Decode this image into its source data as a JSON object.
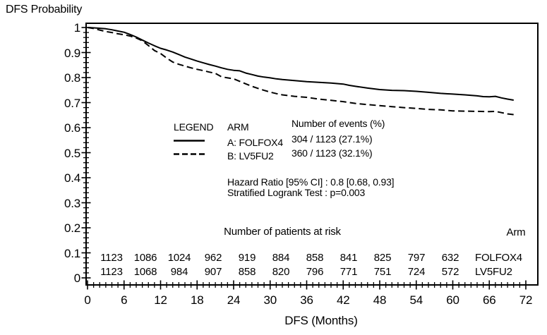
{
  "title": "DFS Probability",
  "xlabel": "DFS (Months)",
  "colors": {
    "line": "#000000",
    "text": "#000000",
    "background": "#ffffff"
  },
  "legend": {
    "header": "LEGEND",
    "arm_header": "ARM",
    "events_header": "Number of events (%)",
    "rows": [
      {
        "arm": "A:  FOLFOX4",
        "events": "304 / 1123  (27.1%)",
        "style": "solid"
      },
      {
        "arm": "B:  LV5FU2",
        "events": "360 / 1123  (32.1%)",
        "style": "dashed"
      }
    ]
  },
  "stats": {
    "line1": "Hazard Ratio [95% CI] : 0.8 [0.68, 0.93]",
    "line2": "Stratified Logrank Test : p=0.003"
  },
  "risk_table": {
    "header": "Number of patients at risk",
    "arm_header": "Arm",
    "months": [
      0,
      6,
      12,
      18,
      24,
      30,
      36,
      42,
      48,
      54,
      60
    ],
    "rows": [
      {
        "arm": "FOLFOX4",
        "counts": [
          1123,
          1086,
          1024,
          962,
          919,
          884,
          858,
          841,
          825,
          797,
          632
        ]
      },
      {
        "arm": "LV5FU2",
        "counts": [
          1123,
          1068,
          984,
          907,
          858,
          820,
          796,
          771,
          751,
          724,
          572
        ]
      }
    ]
  },
  "chart_data": {
    "type": "line",
    "title": "DFS Probability",
    "xlabel": "DFS (Months)",
    "ylabel": "DFS Probability",
    "xlim": [
      0,
      72
    ],
    "ylim": [
      0,
      1
    ],
    "grid": false,
    "legend_position": "inside-center-left",
    "axes": {
      "y_ticks": [
        "1",
        "0.9",
        "0.8",
        "0.7",
        "0.6",
        "0.5",
        "0.4",
        "0.3",
        "0.2",
        "0.1",
        "0"
      ],
      "y_tick_values": [
        1,
        0.9,
        0.8,
        0.7,
        0.6,
        0.5,
        0.4,
        0.3,
        0.2,
        0.1,
        0
      ],
      "y_minor_step": 0.02,
      "x_ticks": [
        0,
        6,
        12,
        18,
        24,
        30,
        36,
        42,
        48,
        54,
        60,
        66,
        72
      ],
      "x_minor_step": 1
    },
    "series": [
      {
        "name": "A: FOLFOX4",
        "style": "solid",
        "points": [
          [
            0,
            1.0
          ],
          [
            1.5,
            0.998
          ],
          [
            3,
            0.995
          ],
          [
            4,
            0.991
          ],
          [
            5,
            0.986
          ],
          [
            6,
            0.981
          ],
          [
            7,
            0.972
          ],
          [
            8,
            0.962
          ],
          [
            9,
            0.95
          ],
          [
            10,
            0.938
          ],
          [
            11,
            0.927
          ],
          [
            12,
            0.917
          ],
          [
            13,
            0.91
          ],
          [
            14,
            0.902
          ],
          [
            15,
            0.892
          ],
          [
            16,
            0.882
          ],
          [
            17,
            0.874
          ],
          [
            18,
            0.866
          ],
          [
            19,
            0.859
          ],
          [
            20,
            0.852
          ],
          [
            21,
            0.846
          ],
          [
            22,
            0.839
          ],
          [
            23,
            0.833
          ],
          [
            24,
            0.829
          ],
          [
            25,
            0.827
          ],
          [
            26,
            0.818
          ],
          [
            27,
            0.812
          ],
          [
            28,
            0.806
          ],
          [
            29,
            0.802
          ],
          [
            30,
            0.799
          ],
          [
            31,
            0.795
          ],
          [
            32,
            0.792
          ],
          [
            33,
            0.79
          ],
          [
            34,
            0.788
          ],
          [
            35,
            0.786
          ],
          [
            36,
            0.784
          ],
          [
            38,
            0.781
          ],
          [
            40,
            0.778
          ],
          [
            42,
            0.774
          ],
          [
            43,
            0.769
          ],
          [
            44,
            0.765
          ],
          [
            46,
            0.758
          ],
          [
            48,
            0.752
          ],
          [
            50,
            0.749
          ],
          [
            52,
            0.748
          ],
          [
            54,
            0.745
          ],
          [
            56,
            0.741
          ],
          [
            58,
            0.737
          ],
          [
            60,
            0.734
          ],
          [
            62,
            0.731
          ],
          [
            64,
            0.727
          ],
          [
            65,
            0.724
          ],
          [
            66,
            0.723
          ],
          [
            67,
            0.725
          ],
          [
            68,
            0.719
          ],
          [
            69,
            0.714
          ],
          [
            70,
            0.71
          ]
        ]
      },
      {
        "name": "B: LV5FU2",
        "style": "dashed",
        "points": [
          [
            0,
            1.0
          ],
          [
            1,
            0.996
          ],
          [
            2,
            0.99
          ],
          [
            3,
            0.984
          ],
          [
            4,
            0.98
          ],
          [
            5,
            0.975
          ],
          [
            6,
            0.971
          ],
          [
            7,
            0.966
          ],
          [
            8,
            0.958
          ],
          [
            9,
            0.947
          ],
          [
            10,
            0.928
          ],
          [
            11,
            0.908
          ],
          [
            12,
            0.896
          ],
          [
            13,
            0.878
          ],
          [
            14,
            0.862
          ],
          [
            15,
            0.853
          ],
          [
            16,
            0.846
          ],
          [
            17,
            0.839
          ],
          [
            18,
            0.833
          ],
          [
            19,
            0.828
          ],
          [
            20,
            0.822
          ],
          [
            21,
            0.817
          ],
          [
            22,
            0.803
          ],
          [
            23,
            0.799
          ],
          [
            24,
            0.795
          ],
          [
            25,
            0.785
          ],
          [
            26,
            0.775
          ],
          [
            27,
            0.765
          ],
          [
            28,
            0.757
          ],
          [
            29,
            0.749
          ],
          [
            30,
            0.742
          ],
          [
            31,
            0.736
          ],
          [
            32,
            0.731
          ],
          [
            33,
            0.728
          ],
          [
            34,
            0.725
          ],
          [
            35,
            0.723
          ],
          [
            36,
            0.721
          ],
          [
            38,
            0.714
          ],
          [
            40,
            0.709
          ],
          [
            42,
            0.704
          ],
          [
            44,
            0.697
          ],
          [
            46,
            0.692
          ],
          [
            48,
            0.688
          ],
          [
            50,
            0.684
          ],
          [
            52,
            0.68
          ],
          [
            54,
            0.677
          ],
          [
            56,
            0.673
          ],
          [
            58,
            0.671
          ],
          [
            60,
            0.667
          ],
          [
            62,
            0.666
          ],
          [
            64,
            0.665
          ],
          [
            66,
            0.664
          ],
          [
            67,
            0.665
          ],
          [
            68,
            0.66
          ],
          [
            69,
            0.655
          ],
          [
            70,
            0.652
          ]
        ]
      }
    ]
  }
}
